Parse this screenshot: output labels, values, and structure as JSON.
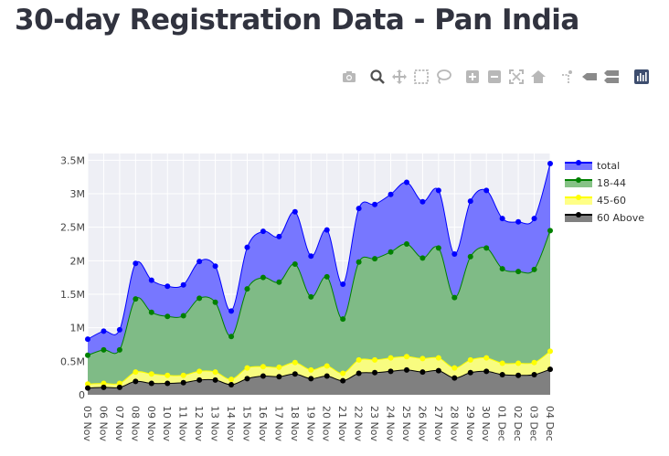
{
  "page": {
    "title": "30-day Registration Data - Pan India"
  },
  "modebar": {
    "buttons": [
      "camera-icon",
      "zoom-icon",
      "pan-icon",
      "box-select-icon",
      "lasso-select-icon",
      "zoom-in-icon",
      "zoom-out-icon",
      "autoscale-icon",
      "reset-axes-icon",
      "spike-lines-icon",
      "hover-closest-icon",
      "hover-compare-icon",
      "plotly-logo-icon"
    ]
  },
  "colors": {
    "total_line": "#0000ff",
    "total_fill": "#7070ff",
    "age_18_44_line": "#008000",
    "age_18_44_fill": "#7fbf7f",
    "age_45_60_line": "#ffff00",
    "age_45_60_fill": "#ffff7f",
    "age_60_above_line": "#000000",
    "age_60_above_fill": "#808080",
    "plot_bg": "#eeeff5",
    "grid": "#ffffff"
  },
  "chart_data": {
    "type": "area",
    "title": "",
    "xlabel": "",
    "ylabel": "",
    "ylim": [
      0,
      3600000
    ],
    "y_ticks": [
      0,
      500000,
      1000000,
      1500000,
      2000000,
      2500000,
      3000000,
      3500000
    ],
    "y_tick_labels": [
      "0",
      "0.5M",
      "1M",
      "1.5M",
      "2M",
      "2.5M",
      "3M",
      "3.5M"
    ],
    "categories": [
      "05 Nov",
      "06 Nov",
      "07 Nov",
      "08 Nov",
      "09 Nov",
      "10 Nov",
      "11 Nov",
      "12 Nov",
      "13 Nov",
      "14 Nov",
      "15 Nov",
      "16 Nov",
      "17 Nov",
      "18 Nov",
      "19 Nov",
      "20 Nov",
      "21 Nov",
      "22 Nov",
      "23 Nov",
      "24 Nov",
      "25 Nov",
      "26 Nov",
      "27 Nov",
      "28 Nov",
      "29 Nov",
      "30 Nov",
      "01 Dec",
      "02 Dec",
      "03 Dec",
      "04 Dec"
    ],
    "legend_position": "top-right",
    "series": [
      {
        "name": "total",
        "values": [
          830000,
          950000,
          970000,
          1960000,
          1710000,
          1620000,
          1640000,
          1990000,
          1920000,
          1250000,
          2200000,
          2440000,
          2360000,
          2730000,
          2070000,
          2460000,
          1650000,
          2780000,
          2840000,
          2990000,
          3170000,
          2880000,
          3050000,
          2100000,
          2890000,
          3050000,
          2630000,
          2580000,
          2630000,
          3450000
        ]
      },
      {
        "name": "18-44",
        "values": [
          590000,
          670000,
          670000,
          1430000,
          1230000,
          1170000,
          1180000,
          1440000,
          1380000,
          870000,
          1580000,
          1750000,
          1680000,
          1950000,
          1460000,
          1760000,
          1130000,
          1980000,
          2030000,
          2130000,
          2250000,
          2040000,
          2190000,
          1450000,
          2060000,
          2190000,
          1880000,
          1840000,
          1870000,
          2450000
        ]
      },
      {
        "name": "45-60",
        "values": [
          160000,
          170000,
          170000,
          340000,
          310000,
          290000,
          290000,
          350000,
          340000,
          230000,
          400000,
          420000,
          410000,
          480000,
          370000,
          430000,
          320000,
          520000,
          520000,
          550000,
          570000,
          540000,
          550000,
          400000,
          520000,
          550000,
          470000,
          470000,
          480000,
          650000
        ]
      },
      {
        "name": "60 Above",
        "values": [
          100000,
          110000,
          110000,
          200000,
          170000,
          170000,
          180000,
          220000,
          220000,
          150000,
          240000,
          280000,
          270000,
          310000,
          240000,
          280000,
          210000,
          320000,
          330000,
          350000,
          370000,
          340000,
          360000,
          250000,
          330000,
          350000,
          300000,
          290000,
          300000,
          380000
        ]
      }
    ]
  }
}
